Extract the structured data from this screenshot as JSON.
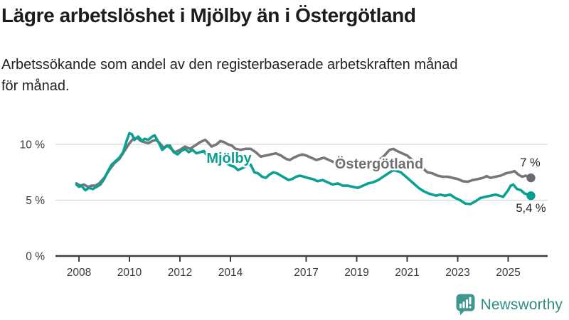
{
  "header": {
    "title": "Lägre arbetslöshet i Mjölby än i Östergötland",
    "subtitle_line1": "Arbetssökande som andel av den registerbaserade arbetskraften månad",
    "subtitle_line2": "för månad."
  },
  "footer": {
    "brand": "Newsworthy",
    "brand_text_color": "#2f8c84",
    "brand_icon": "bar-chart-speech-bubble-icon",
    "brand_icon_color": "#3f988f"
  },
  "chart_data": {
    "type": "line",
    "title": "",
    "xlabel": "",
    "ylabel": "",
    "x_unit": "decimal year (monthly series 2008–2025)",
    "ylim": [
      0,
      11.7
    ],
    "xlim": [
      2007.1,
      2026.6
    ],
    "grid": "horizontal",
    "background": "#ffffff",
    "gridline_color": "#d8d8d8",
    "axis_color": "#3d3d3d",
    "tick_label_color": "#3a3a3a",
    "end_label_color": "#1f1f1f",
    "yticks": [
      {
        "value": 0,
        "label": "0 %"
      },
      {
        "value": 5,
        "label": "5 %"
      },
      {
        "value": 10,
        "label": "10 %"
      }
    ],
    "xticks": [
      {
        "value": 2008,
        "label": "2008"
      },
      {
        "value": 2010,
        "label": "2010"
      },
      {
        "value": 2012,
        "label": "2012"
      },
      {
        "value": 2014,
        "label": "2014"
      },
      {
        "value": 2017,
        "label": "2017"
      },
      {
        "value": 2019,
        "label": "2019"
      },
      {
        "value": 2021,
        "label": "2021"
      },
      {
        "value": 2023,
        "label": "2023"
      },
      {
        "value": 2025,
        "label": "2025"
      }
    ],
    "series": [
      {
        "name": "Östergötland",
        "color": "#76767b",
        "dot_color": "#6a6a6f",
        "end_label": "7 %",
        "end_value": 7.0,
        "points": [
          [
            2007.9,
            6.5
          ],
          [
            2008.05,
            6.3
          ],
          [
            2008.2,
            6.4
          ],
          [
            2008.35,
            6.2
          ],
          [
            2008.5,
            6.3
          ],
          [
            2008.65,
            6.3
          ],
          [
            2008.8,
            6.5
          ],
          [
            2009.0,
            7.0
          ],
          [
            2009.2,
            7.7
          ],
          [
            2009.4,
            8.3
          ],
          [
            2009.6,
            8.7
          ],
          [
            2009.8,
            9.4
          ],
          [
            2010.0,
            10.1
          ],
          [
            2010.15,
            10.5
          ],
          [
            2010.3,
            10.6
          ],
          [
            2010.45,
            10.3
          ],
          [
            2010.6,
            10.2
          ],
          [
            2010.75,
            10.1
          ],
          [
            2010.9,
            10.3
          ],
          [
            2011.05,
            10.4
          ],
          [
            2011.2,
            10.1
          ],
          [
            2011.35,
            9.7
          ],
          [
            2011.5,
            9.9
          ],
          [
            2011.65,
            9.6
          ],
          [
            2011.8,
            9.3
          ],
          [
            2012.0,
            9.5
          ],
          [
            2012.2,
            9.8
          ],
          [
            2012.4,
            9.6
          ],
          [
            2012.6,
            9.9
          ],
          [
            2012.8,
            10.2
          ],
          [
            2013.0,
            10.4
          ],
          [
            2013.1,
            10.2
          ],
          [
            2013.25,
            9.8
          ],
          [
            2013.45,
            10.0
          ],
          [
            2013.6,
            10.3
          ],
          [
            2013.75,
            10.2
          ],
          [
            2013.9,
            10.0
          ],
          [
            2014.05,
            9.9
          ],
          [
            2014.2,
            9.6
          ],
          [
            2014.4,
            9.5
          ],
          [
            2014.6,
            9.6
          ],
          [
            2014.8,
            9.6
          ],
          [
            2015.0,
            9.3
          ],
          [
            2015.2,
            8.9
          ],
          [
            2015.4,
            9.0
          ],
          [
            2015.6,
            9.1
          ],
          [
            2015.8,
            9.2
          ],
          [
            2016.0,
            9.0
          ],
          [
            2016.2,
            8.7
          ],
          [
            2016.35,
            8.6
          ],
          [
            2016.5,
            8.8
          ],
          [
            2016.7,
            9.0
          ],
          [
            2016.85,
            9.1
          ],
          [
            2017.0,
            9.0
          ],
          [
            2017.2,
            8.8
          ],
          [
            2017.4,
            8.6
          ],
          [
            2017.55,
            8.7
          ],
          [
            2017.7,
            8.8
          ],
          [
            2017.9,
            8.6
          ],
          [
            2018.1,
            8.4
          ],
          [
            2018.3,
            8.3
          ],
          [
            2018.5,
            8.5
          ],
          [
            2018.7,
            8.4
          ],
          [
            2018.9,
            8.3
          ],
          [
            2019.1,
            8.2
          ],
          [
            2019.3,
            8.3
          ],
          [
            2019.5,
            8.2
          ],
          [
            2019.7,
            8.3
          ],
          [
            2019.9,
            8.6
          ],
          [
            2020.1,
            9.0
          ],
          [
            2020.3,
            9.5
          ],
          [
            2020.45,
            9.6
          ],
          [
            2020.6,
            9.4
          ],
          [
            2020.8,
            9.2
          ],
          [
            2021.0,
            9.0
          ],
          [
            2021.2,
            8.6
          ],
          [
            2021.4,
            8.2
          ],
          [
            2021.6,
            7.9
          ],
          [
            2021.8,
            7.5
          ],
          [
            2022.0,
            7.4
          ],
          [
            2022.2,
            7.2
          ],
          [
            2022.4,
            7.1
          ],
          [
            2022.6,
            7.1
          ],
          [
            2022.8,
            7.0
          ],
          [
            2023.0,
            6.9
          ],
          [
            2023.2,
            6.7
          ],
          [
            2023.4,
            6.65
          ],
          [
            2023.6,
            6.8
          ],
          [
            2023.8,
            6.9
          ],
          [
            2024.0,
            7.0
          ],
          [
            2024.15,
            7.15
          ],
          [
            2024.3,
            7.0
          ],
          [
            2024.5,
            7.1
          ],
          [
            2024.7,
            7.2
          ],
          [
            2024.9,
            7.4
          ],
          [
            2025.1,
            7.5
          ],
          [
            2025.25,
            7.6
          ],
          [
            2025.4,
            7.3
          ],
          [
            2025.55,
            7.1
          ],
          [
            2025.7,
            7.2
          ],
          [
            2025.9,
            7.0
          ]
        ]
      },
      {
        "name": "Mjölby",
        "color": "#0aa192",
        "dot_color": "#00a18f",
        "end_label": "5,4 %",
        "end_value": 5.4,
        "points": [
          [
            2007.9,
            6.4
          ],
          [
            2008.0,
            6.2
          ],
          [
            2008.1,
            6.3
          ],
          [
            2008.25,
            5.9
          ],
          [
            2008.4,
            6.1
          ],
          [
            2008.55,
            6.0
          ],
          [
            2008.7,
            6.2
          ],
          [
            2008.85,
            6.4
          ],
          [
            2009.0,
            6.9
          ],
          [
            2009.15,
            7.6
          ],
          [
            2009.3,
            8.2
          ],
          [
            2009.45,
            8.5
          ],
          [
            2009.6,
            8.8
          ],
          [
            2009.75,
            9.3
          ],
          [
            2009.9,
            10.4
          ],
          [
            2010.0,
            11.0
          ],
          [
            2010.1,
            10.9
          ],
          [
            2010.2,
            10.4
          ],
          [
            2010.35,
            10.7
          ],
          [
            2010.5,
            10.3
          ],
          [
            2010.6,
            10.5
          ],
          [
            2010.75,
            10.4
          ],
          [
            2010.9,
            10.7
          ],
          [
            2011.0,
            10.8
          ],
          [
            2011.15,
            10.2
          ],
          [
            2011.3,
            9.5
          ],
          [
            2011.45,
            9.8
          ],
          [
            2011.6,
            9.9
          ],
          [
            2011.75,
            9.3
          ],
          [
            2011.9,
            9.1
          ],
          [
            2012.05,
            9.4
          ],
          [
            2012.2,
            9.6
          ],
          [
            2012.35,
            9.3
          ],
          [
            2012.5,
            9.5
          ],
          [
            2012.65,
            9.2
          ],
          [
            2012.8,
            9.3
          ],
          [
            2012.95,
            9.4
          ],
          [
            2013.1,
            8.9
          ],
          [
            2013.25,
            9.1
          ],
          [
            2013.45,
            8.8
          ],
          [
            2013.65,
            8.6
          ],
          [
            2013.85,
            8.3
          ],
          [
            2014.0,
            8.1
          ],
          [
            2014.15,
            8.0
          ],
          [
            2014.3,
            7.7
          ],
          [
            2014.5,
            7.9
          ],
          [
            2014.65,
            8.1
          ],
          [
            2014.8,
            8.2
          ],
          [
            2014.95,
            7.5
          ],
          [
            2015.1,
            7.4
          ],
          [
            2015.25,
            7.1
          ],
          [
            2015.4,
            7.0
          ],
          [
            2015.55,
            7.3
          ],
          [
            2015.7,
            7.5
          ],
          [
            2015.85,
            7.4
          ],
          [
            2016.0,
            7.2
          ],
          [
            2016.15,
            7.0
          ],
          [
            2016.3,
            6.8
          ],
          [
            2016.45,
            6.9
          ],
          [
            2016.6,
            7.1
          ],
          [
            2016.75,
            7.2
          ],
          [
            2016.9,
            7.1
          ],
          [
            2017.05,
            7.0
          ],
          [
            2017.25,
            6.9
          ],
          [
            2017.45,
            6.7
          ],
          [
            2017.65,
            6.8
          ],
          [
            2017.85,
            6.6
          ],
          [
            2018.05,
            6.4
          ],
          [
            2018.25,
            6.5
          ],
          [
            2018.45,
            6.3
          ],
          [
            2018.65,
            6.3
          ],
          [
            2018.85,
            6.2
          ],
          [
            2019.05,
            6.1
          ],
          [
            2019.25,
            6.3
          ],
          [
            2019.45,
            6.5
          ],
          [
            2019.65,
            6.6
          ],
          [
            2019.85,
            6.8
          ],
          [
            2020.05,
            7.1
          ],
          [
            2020.25,
            7.4
          ],
          [
            2020.45,
            7.7
          ],
          [
            2020.6,
            7.6
          ],
          [
            2020.75,
            7.5
          ],
          [
            2020.9,
            7.2
          ],
          [
            2021.05,
            6.9
          ],
          [
            2021.25,
            6.5
          ],
          [
            2021.45,
            6.1
          ],
          [
            2021.65,
            5.8
          ],
          [
            2021.85,
            5.6
          ],
          [
            2022.0,
            5.5
          ],
          [
            2022.15,
            5.4
          ],
          [
            2022.3,
            5.5
          ],
          [
            2022.5,
            5.4
          ],
          [
            2022.7,
            5.5
          ],
          [
            2022.9,
            5.2
          ],
          [
            2023.1,
            5.0
          ],
          [
            2023.3,
            4.7
          ],
          [
            2023.5,
            4.65
          ],
          [
            2023.7,
            4.9
          ],
          [
            2023.9,
            5.2
          ],
          [
            2024.1,
            5.3
          ],
          [
            2024.3,
            5.4
          ],
          [
            2024.5,
            5.5
          ],
          [
            2024.65,
            5.4
          ],
          [
            2024.8,
            5.3
          ],
          [
            2025.0,
            5.9
          ],
          [
            2025.1,
            6.3
          ],
          [
            2025.2,
            6.4
          ],
          [
            2025.35,
            6.0
          ],
          [
            2025.5,
            5.9
          ],
          [
            2025.65,
            5.6
          ],
          [
            2025.8,
            5.5
          ],
          [
            2025.9,
            5.4
          ]
        ]
      }
    ],
    "legend": "inline series labels on chart"
  }
}
